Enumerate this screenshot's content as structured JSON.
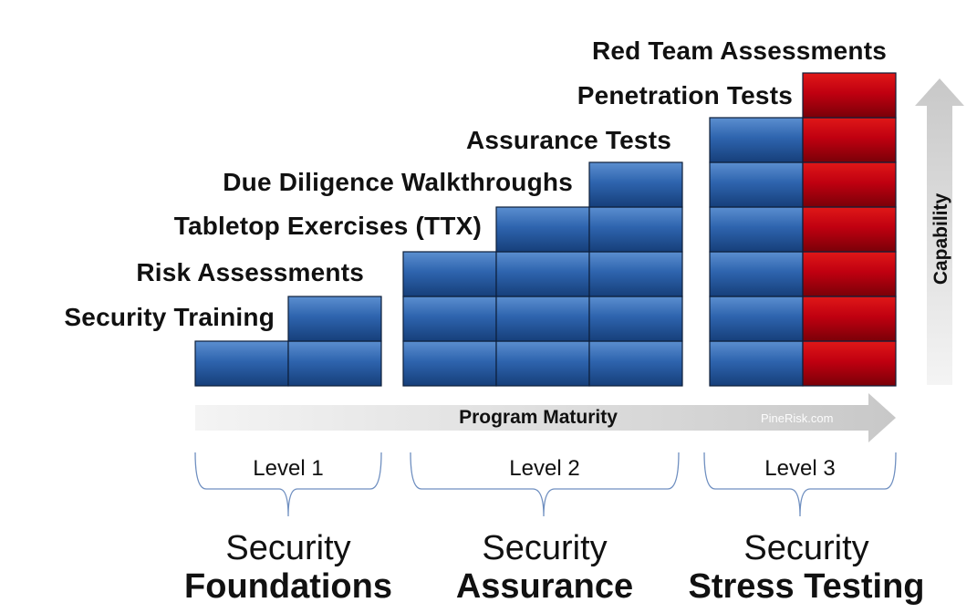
{
  "activities": [
    "Red Team Assessments",
    "Penetration Tests",
    "Assurance Tests",
    "Due Diligence Walkthroughs",
    "Tabletop Exercises (TTX)",
    "Risk Assessments",
    "Security Training"
  ],
  "axes": {
    "horizontal": "Program Maturity",
    "vertical": "Capability"
  },
  "watermark": "PineRisk.com",
  "levels": [
    {
      "label": "Level 1",
      "category_line1": "Security",
      "category_line2": "Foundations"
    },
    {
      "label": "Level 2",
      "category_line1": "Security",
      "category_line2": "Assurance"
    },
    {
      "label": "Level 3",
      "category_line1": "Security",
      "category_line2": "Stress Testing"
    }
  ],
  "colors": {
    "blue": "#2f5fa4",
    "red": "#c0000c",
    "text": "#111111"
  }
}
